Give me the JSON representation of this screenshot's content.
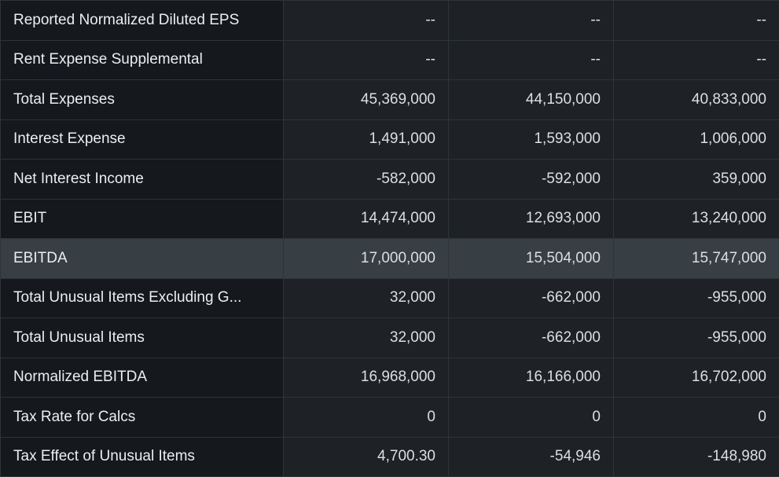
{
  "rows": [
    {
      "label": "Reported Normalized Diluted EPS",
      "values": [
        "--",
        "--",
        "--"
      ]
    },
    {
      "label": "Rent Expense Supplemental",
      "values": [
        "--",
        "--",
        "--"
      ]
    },
    {
      "label": "Total Expenses",
      "values": [
        "45,369,000",
        "44,150,000",
        "40,833,000"
      ]
    },
    {
      "label": "Interest Expense",
      "values": [
        "1,491,000",
        "1,593,000",
        "1,006,000"
      ]
    },
    {
      "label": "Net Interest Income",
      "values": [
        "-582,000",
        "-592,000",
        "359,000"
      ]
    },
    {
      "label": "EBIT",
      "values": [
        "14,474,000",
        "12,693,000",
        "13,240,000"
      ]
    },
    {
      "label": "EBITDA",
      "values": [
        "17,000,000",
        "15,504,000",
        "15,747,000"
      ],
      "highlighted": true
    },
    {
      "label": "Total Unusual Items Excluding G...",
      "values": [
        "32,000",
        "-662,000",
        "-955,000"
      ]
    },
    {
      "label": "Total Unusual Items",
      "values": [
        "32,000",
        "-662,000",
        "-955,000"
      ]
    },
    {
      "label": "Normalized EBITDA",
      "values": [
        "16,968,000",
        "16,166,000",
        "16,702,000"
      ]
    },
    {
      "label": "Tax Rate for Calcs",
      "values": [
        "0",
        "0",
        "0"
      ]
    },
    {
      "label": "Tax Effect of Unusual Items",
      "values": [
        "4,700.30",
        "-54,946",
        "-148,980"
      ]
    }
  ],
  "colors": {
    "label_bg": "#15181d",
    "value_bg": "#1e2227",
    "highlight_bg": "#373e44",
    "border": "#2f3439"
  }
}
